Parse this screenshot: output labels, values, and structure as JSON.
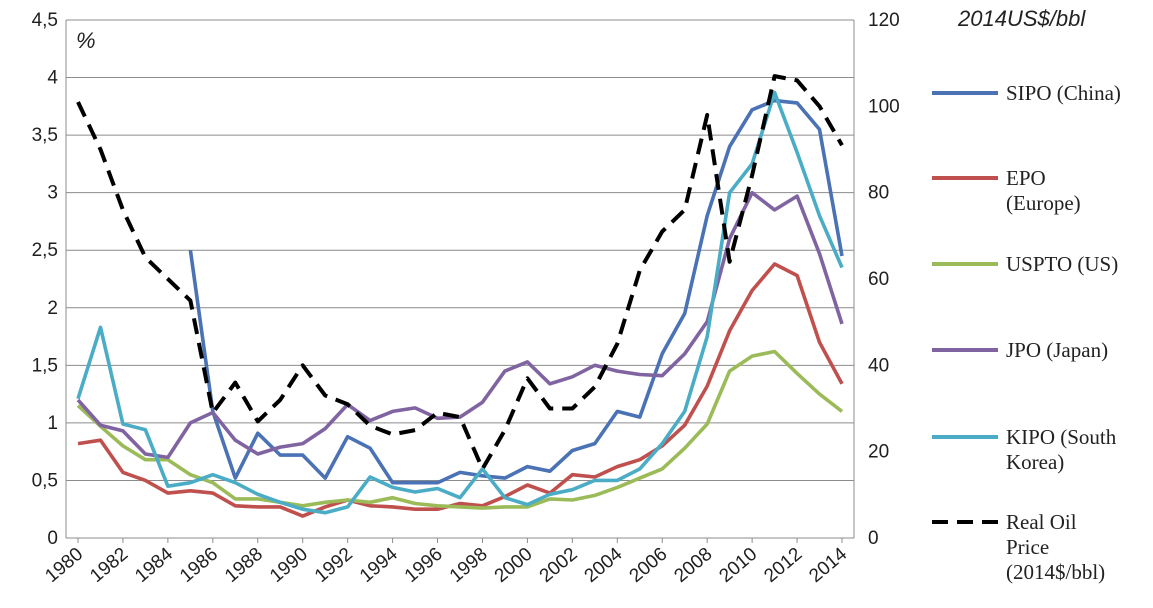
{
  "chart_data": {
    "type": "line",
    "x": [
      1980,
      1981,
      1982,
      1983,
      1984,
      1985,
      1986,
      1987,
      1988,
      1989,
      1990,
      1991,
      1992,
      1993,
      1994,
      1995,
      1996,
      1997,
      1998,
      1999,
      2000,
      2001,
      2002,
      2003,
      2004,
      2005,
      2006,
      2007,
      2008,
      2009,
      2010,
      2011,
      2012,
      2013,
      2014
    ],
    "x_tick_labels": [
      "1980",
      "1982",
      "1984",
      "1986",
      "1988",
      "1990",
      "1992",
      "1994",
      "1996",
      "1998",
      "2000",
      "2002",
      "2004",
      "2006",
      "2008",
      "2010",
      "2012",
      "2014"
    ],
    "left_axis": {
      "unit_label": "%",
      "ylim": [
        0,
        4.5
      ],
      "tick_labels": [
        "0",
        "0,5",
        "1",
        "1,5",
        "2",
        "2,5",
        "3",
        "3,5",
        "4",
        "4,5"
      ]
    },
    "right_axis": {
      "unit_label": "2014US$/bbl",
      "ylim": [
        0,
        120
      ],
      "tick_labels": [
        "0",
        "20",
        "40",
        "60",
        "80",
        "100",
        "120"
      ]
    },
    "grid": true,
    "legend_position": "right",
    "series": [
      {
        "name": "SIPO (China)",
        "axis": "left",
        "color": "#4a72b4",
        "dash": "solid",
        "values": [
          null,
          null,
          null,
          null,
          null,
          2.5,
          1.1,
          0.52,
          0.91,
          0.72,
          0.72,
          0.52,
          0.88,
          0.78,
          0.48,
          0.48,
          0.48,
          0.57,
          0.54,
          0.52,
          0.62,
          0.58,
          0.76,
          0.82,
          1.1,
          1.05,
          1.6,
          1.95,
          2.8,
          3.4,
          3.72,
          3.8,
          3.78,
          3.55,
          2.45
        ]
      },
      {
        "name": "EPO (Europe)",
        "axis": "left",
        "color": "#c0504d",
        "dash": "solid",
        "values": [
          0.82,
          0.85,
          0.57,
          0.5,
          0.39,
          0.41,
          0.39,
          0.28,
          0.27,
          0.27,
          0.19,
          0.27,
          0.33,
          0.28,
          0.27,
          0.25,
          0.25,
          0.3,
          0.28,
          0.36,
          0.46,
          0.39,
          0.55,
          0.53,
          0.62,
          0.68,
          0.8,
          0.98,
          1.32,
          1.8,
          2.15,
          2.38,
          2.28,
          1.7,
          1.34
        ]
      },
      {
        "name": "USPTO (US)",
        "axis": "left",
        "color": "#9bbb59",
        "dash": "solid",
        "values": [
          1.15,
          0.97,
          0.8,
          0.68,
          0.68,
          0.55,
          0.48,
          0.34,
          0.34,
          0.31,
          0.28,
          0.31,
          0.33,
          0.31,
          0.35,
          0.3,
          0.28,
          0.27,
          0.26,
          0.27,
          0.27,
          0.34,
          0.33,
          0.37,
          0.44,
          0.52,
          0.6,
          0.78,
          0.99,
          1.45,
          1.58,
          1.62,
          1.43,
          1.25,
          1.1
        ]
      },
      {
        "name": "JPO (Japan)",
        "axis": "left",
        "color": "#8064a2",
        "dash": "solid",
        "values": [
          1.2,
          0.98,
          0.93,
          0.73,
          0.7,
          1.0,
          1.09,
          0.85,
          0.73,
          0.79,
          0.82,
          0.95,
          1.16,
          1.02,
          1.1,
          1.13,
          1.04,
          1.05,
          1.18,
          1.45,
          1.53,
          1.34,
          1.4,
          1.5,
          1.45,
          1.42,
          1.41,
          1.6,
          1.88,
          2.6,
          3.0,
          2.85,
          2.97,
          2.47,
          1.86
        ]
      },
      {
        "name": "KIPO (South Korea)",
        "axis": "left",
        "color": "#4bacc6",
        "dash": "solid",
        "values": [
          1.21,
          1.83,
          0.99,
          0.94,
          0.45,
          0.48,
          0.55,
          0.48,
          0.38,
          0.31,
          0.25,
          0.22,
          0.27,
          0.53,
          0.44,
          0.4,
          0.43,
          0.35,
          0.6,
          0.35,
          0.29,
          0.38,
          0.42,
          0.5,
          0.5,
          0.6,
          0.82,
          1.1,
          1.75,
          3.0,
          3.25,
          3.87,
          3.35,
          2.8,
          2.35
        ]
      },
      {
        "name": "Real Oil Price (2014$/bbl)",
        "axis": "right",
        "color": "#000000",
        "dash": "dashed",
        "values": [
          101,
          90,
          76,
          65,
          60,
          55,
          29,
          36,
          27,
          32,
          40,
          33,
          31,
          26,
          24,
          25,
          29,
          28,
          16,
          25,
          37,
          30,
          30,
          35,
          45,
          62,
          71,
          76,
          98,
          64,
          84,
          107,
          106,
          100,
          91
        ]
      }
    ]
  },
  "legend": [
    {
      "lines": [
        "SIPO (China)"
      ]
    },
    {
      "lines": [
        "EPO",
        "(Europe)"
      ]
    },
    {
      "lines": [
        "USPTO (US)"
      ]
    },
    {
      "lines": [
        "JPO (Japan)"
      ]
    },
    {
      "lines": [
        "KIPO (South",
        "Korea)"
      ]
    },
    {
      "lines": [
        "Real Oil",
        "Price",
        "(2014$/bbl)"
      ]
    }
  ]
}
